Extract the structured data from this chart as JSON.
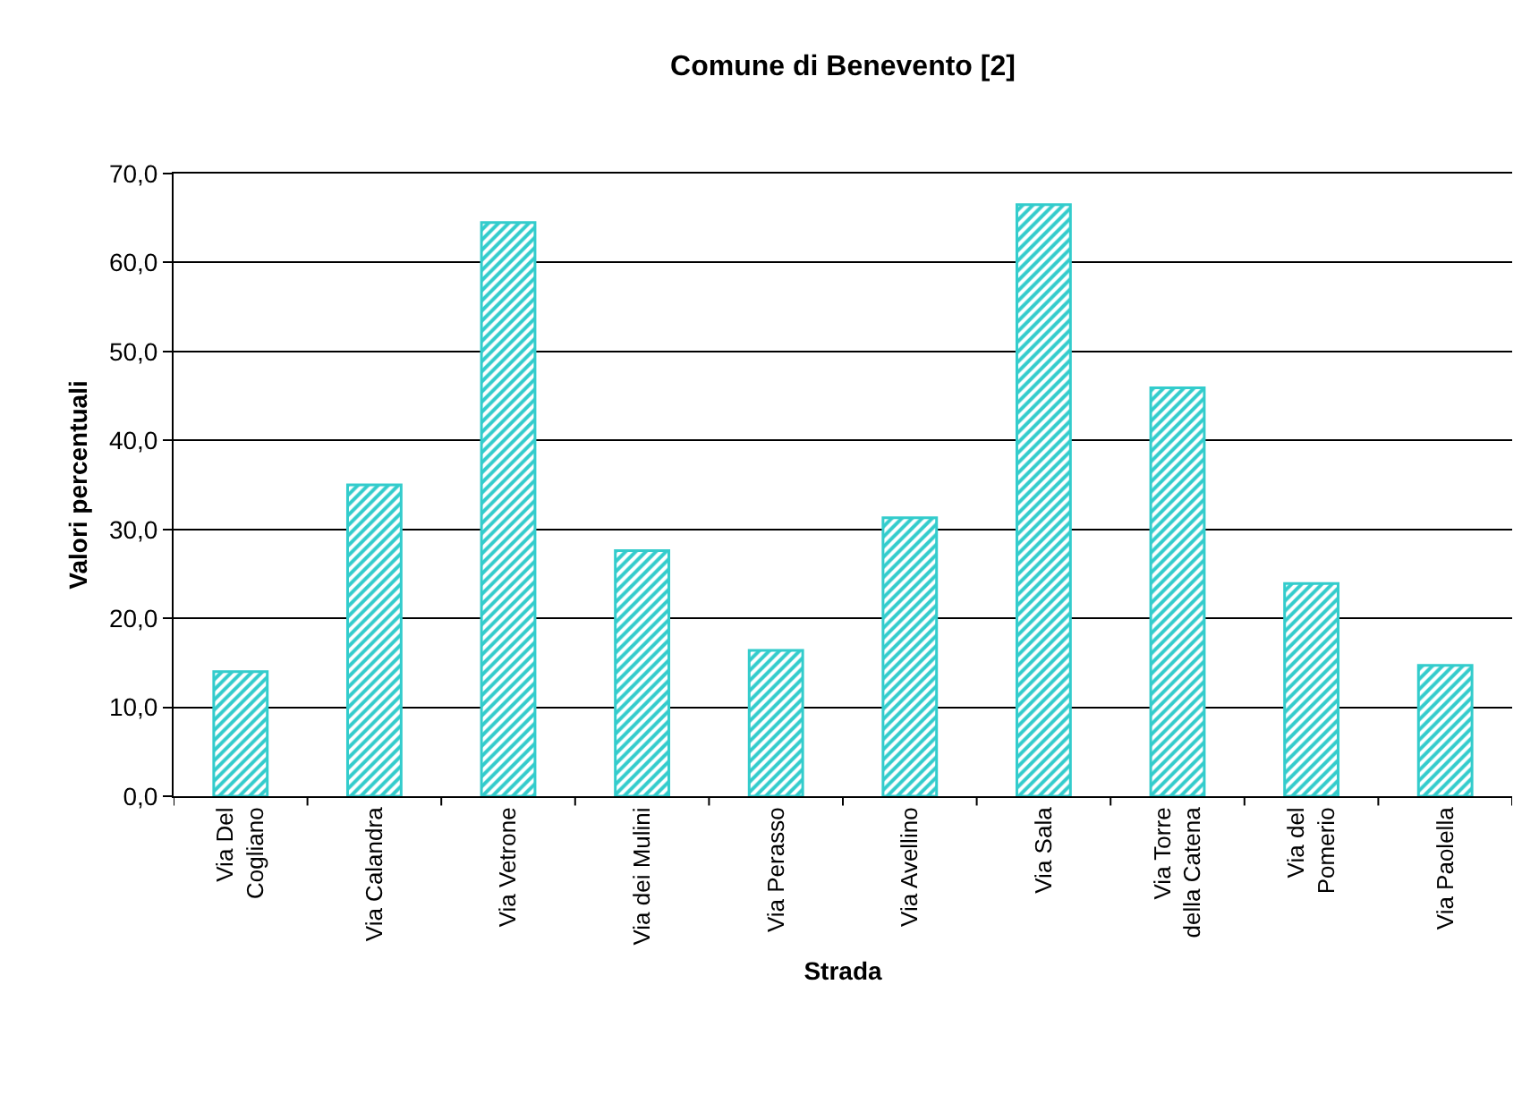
{
  "chart_data": {
    "type": "bar",
    "title": "Comune di Benevento [2]",
    "xlabel": "Strada",
    "ylabel": "Valori percentuali",
    "categories": [
      "Via Del Cogliano",
      "Via Calandra",
      "Via Vetrone",
      "Via dei Mulini",
      "Via Perasso",
      "Via Avellino",
      "Via Sala",
      "Via Torre della Catena",
      "Via del Pomerio",
      "Via Paolella"
    ],
    "values": [
      14.0,
      35.0,
      64.5,
      27.6,
      16.4,
      31.3,
      66.5,
      45.9,
      23.9,
      14.7
    ],
    "color": "#33cccc",
    "ylim": [
      0,
      70
    ],
    "yticks": [
      {
        "value": 0,
        "label": "0,0"
      },
      {
        "value": 10,
        "label": "10,0"
      },
      {
        "value": 20,
        "label": "20,0"
      },
      {
        "value": 30,
        "label": "30,0"
      },
      {
        "value": 40,
        "label": "40,0"
      },
      {
        "value": 50,
        "label": "50,0"
      },
      {
        "value": 60,
        "label": "60,0"
      },
      {
        "value": 70,
        "label": "70,0"
      }
    ],
    "grid": "y"
  }
}
